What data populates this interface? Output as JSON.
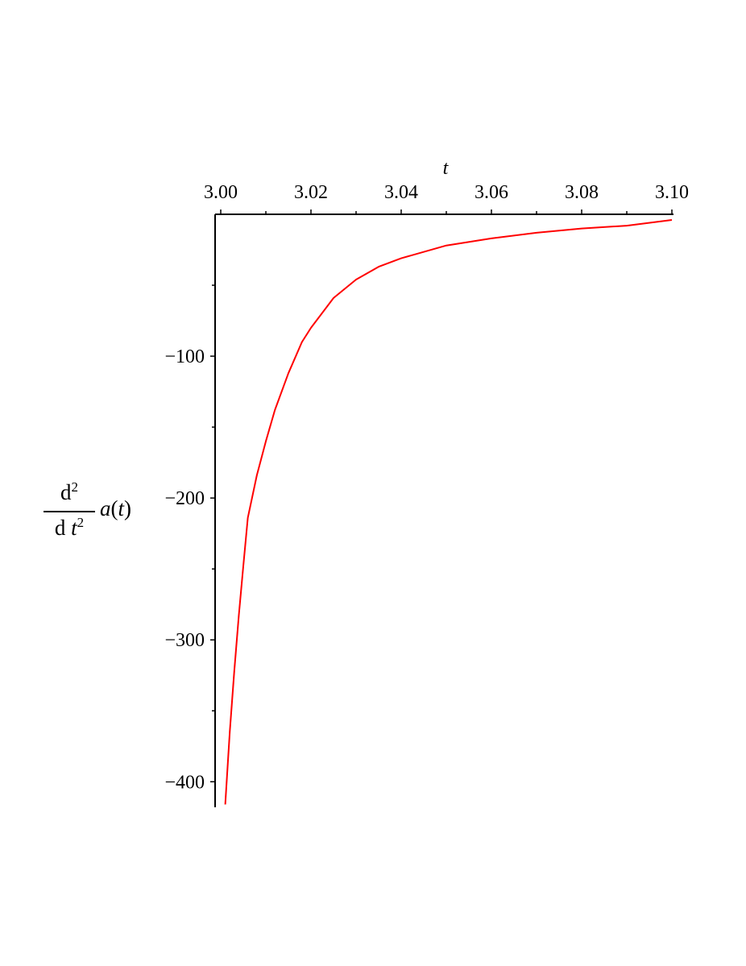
{
  "chart_data": {
    "type": "line",
    "title": "",
    "xlabel": "t",
    "ylabel": {
      "numerator": "d",
      "numerator_power": "2",
      "denominator_d": "d",
      "denominator_var": "t",
      "denominator_power": "2",
      "function": "a",
      "open_paren": "(",
      "argument": "t",
      "close_paren": ")"
    },
    "xlim": [
      3.0,
      3.1
    ],
    "ylim": [
      -418,
      0
    ],
    "x_axis_position": "top",
    "grid": false,
    "x_ticks": [
      "3.00",
      "3.02",
      "3.04",
      "3.06",
      "3.08",
      "3.10"
    ],
    "y_ticks": [
      "-100",
      "-200",
      "-300",
      "-400"
    ],
    "series": [
      {
        "color": "#ff0000",
        "x": [
          3.001,
          3.002,
          3.003,
          3.004,
          3.005,
          3.006,
          3.008,
          3.01,
          3.012,
          3.015,
          3.018,
          3.02,
          3.025,
          3.03,
          3.035,
          3.04,
          3.05,
          3.06,
          3.07,
          3.08,
          3.09,
          3.1
        ],
        "y": [
          -416,
          -365,
          -322,
          -283,
          -248,
          -214,
          -184,
          -160,
          -138,
          -112,
          -90,
          -80,
          -59,
          -46,
          -37,
          -31,
          -22,
          -17,
          -13,
          -10,
          -8,
          -4
        ]
      }
    ]
  }
}
